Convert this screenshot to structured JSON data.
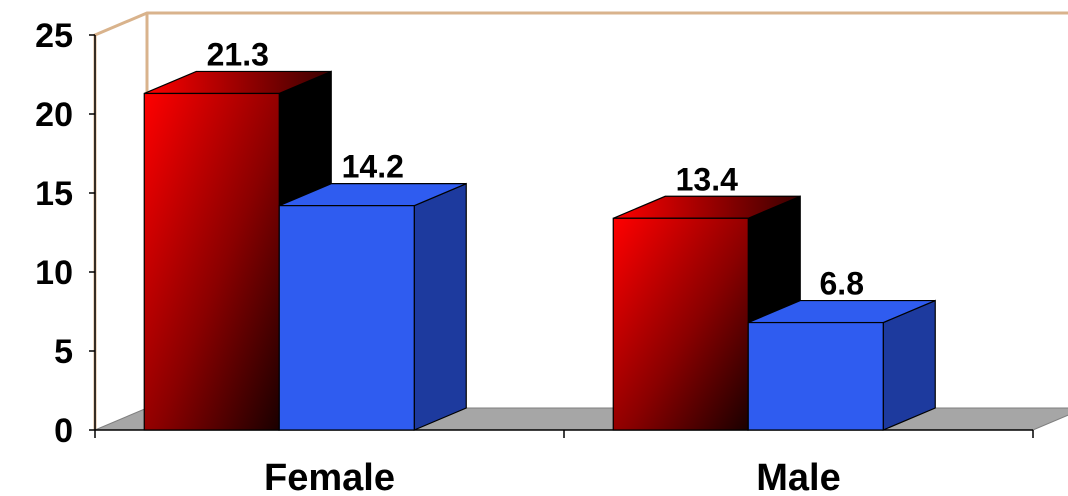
{
  "chart_data": {
    "type": "bar",
    "categories": [
      "Female",
      "Male"
    ],
    "series": [
      {
        "values": [
          21.3,
          13.4
        ],
        "color": "#ff0000"
      },
      {
        "values": [
          14.2,
          6.8
        ],
        "color": "#2f5cf0"
      }
    ],
    "data_labels": [
      [
        "21.3",
        "13.4"
      ],
      [
        "14.2",
        "6.8"
      ]
    ],
    "ylim": [
      0,
      25
    ],
    "yticks": [
      0,
      5,
      10,
      15,
      20,
      25
    ],
    "ytick_labels": [
      "0",
      "5",
      "10",
      "15",
      "20",
      "25"
    ],
    "grid": false,
    "style": "3d",
    "wall_color": "#d9b38c",
    "floor_color": "#a6a6a6"
  }
}
